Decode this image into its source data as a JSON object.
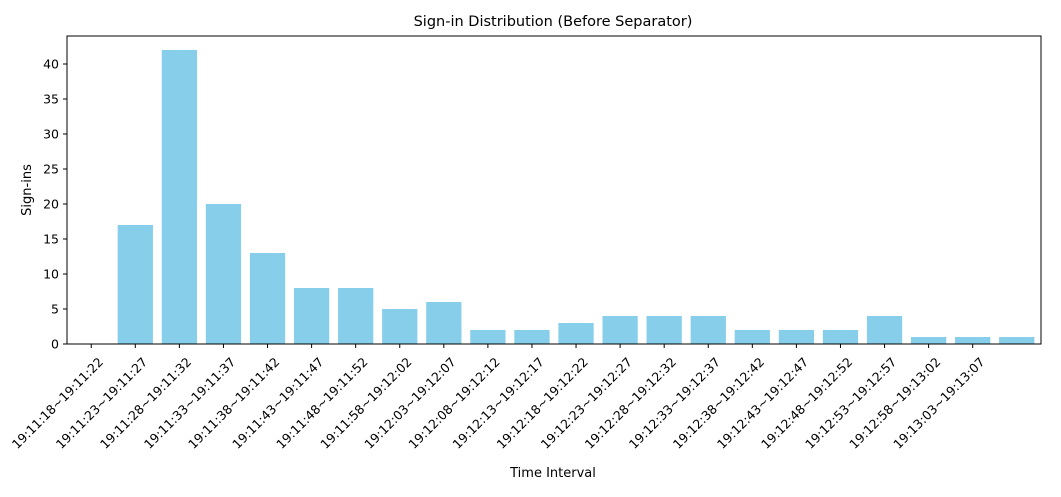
{
  "chart_data": {
    "type": "bar",
    "title": "Sign-in Distribution (Before Separator)",
    "xlabel": "Time Interval",
    "ylabel": "Sign-ins",
    "ylim": [
      0,
      44
    ],
    "yticks": [
      0,
      5,
      10,
      15,
      20,
      25,
      30,
      35,
      40
    ],
    "grid": false,
    "bar_color": "#87ceeb",
    "categories": [
      "19:11:18~19:11:22",
      "19:11:23~19:11:27",
      "19:11:28~19:11:32",
      "19:11:33~19:11:37",
      "19:11:38~19:11:42",
      "19:11:43~19:11:47",
      "19:11:48~19:11:52",
      "19:11:58~19:12:02",
      "19:12:03~19:12:07",
      "19:12:08~19:12:12",
      "19:12:13~19:12:17",
      "19:12:18~19:12:22",
      "19:12:23~19:12:27",
      "19:12:28~19:12:32",
      "19:12:33~19:12:37",
      "19:12:38~19:12:42",
      "19:12:43~19:12:47",
      "19:12:48~19:12:52",
      "19:12:53~19:12:57",
      "19:12:58~19:13:02",
      "19:13:03~19:13:07"
    ],
    "values": [
      17,
      42,
      20,
      13,
      8,
      8,
      5,
      6,
      2,
      2,
      3,
      4,
      4,
      4,
      2,
      2,
      2,
      4,
      1,
      1,
      1
    ],
    "bar_positions": [
      1,
      2,
      3,
      4,
      5,
      6,
      7,
      8,
      9,
      10,
      11,
      12,
      13,
      14,
      15,
      16,
      17,
      18,
      19,
      20,
      21
    ],
    "tick_positions": [
      0,
      1,
      2,
      3,
      4,
      5,
      6,
      7,
      8,
      9,
      10,
      11,
      12,
      13,
      14,
      15,
      16,
      17,
      18,
      19,
      20
    ],
    "x_range": [
      -0.55,
      21.55
    ]
  }
}
